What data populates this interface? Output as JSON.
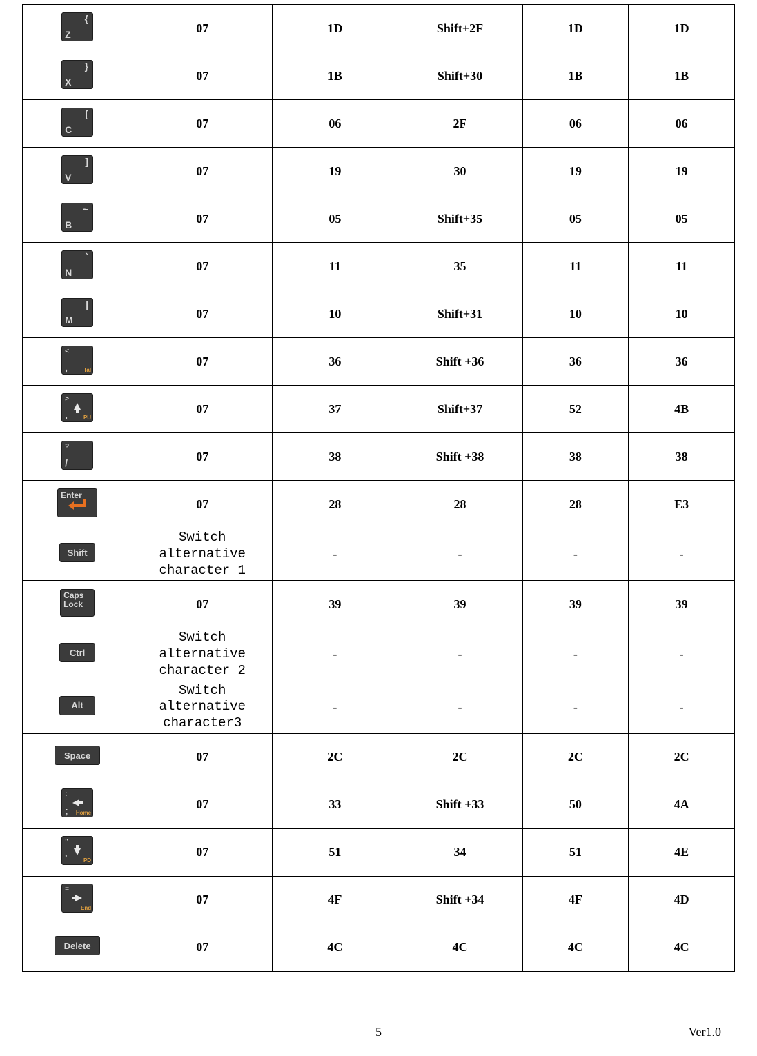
{
  "columns": [
    "key",
    "col1",
    "col2",
    "col3",
    "col4",
    "col5"
  ],
  "footer": {
    "page": "5",
    "ver": "Ver1.0"
  },
  "rows": [
    {
      "key": {
        "type": "char",
        "main": "Z",
        "alt": "{"
      },
      "c1": "07",
      "c2": "1D",
      "c3": "Shift+2F",
      "c4": "1D",
      "c5": "1D"
    },
    {
      "key": {
        "type": "char",
        "main": "X",
        "alt": "}"
      },
      "c1": "07",
      "c2": "1B",
      "c3": "Shift+30",
      "c4": "1B",
      "c5": "1B"
    },
    {
      "key": {
        "type": "char",
        "main": "C",
        "alt": "["
      },
      "c1": "07",
      "c2": "06",
      "c3": "2F",
      "c4": "06",
      "c5": "06"
    },
    {
      "key": {
        "type": "char",
        "main": "V",
        "alt": "]"
      },
      "c1": "07",
      "c2": "19",
      "c3": "30",
      "c4": "19",
      "c5": "19"
    },
    {
      "key": {
        "type": "char",
        "main": "B",
        "alt": "~"
      },
      "c1": "07",
      "c2": "05",
      "c3": "Shift+35",
      "c4": "05",
      "c5": "05"
    },
    {
      "key": {
        "type": "char",
        "main": "N",
        "alt": "`"
      },
      "c1": "07",
      "c2": "11",
      "c3": "35",
      "c4": "11",
      "c5": "11"
    },
    {
      "key": {
        "type": "char",
        "main": "M",
        "alt": "|"
      },
      "c1": "07",
      "c2": "10",
      "c3": "Shift+31",
      "c4": "10",
      "c5": "10"
    },
    {
      "key": {
        "type": "punct",
        "top": "<",
        "bottom": ",",
        "corner": "Tal"
      },
      "c1": "07",
      "c2": "36",
      "c3": "Shift +36",
      "c4": "36",
      "c5": "36"
    },
    {
      "key": {
        "type": "arrowkey",
        "top": ">",
        "bottom": ".",
        "dir": "up",
        "corner": "PU"
      },
      "c1": "07",
      "c2": "37",
      "c3": "Shift+37",
      "c4": "52",
      "c5": "4B"
    },
    {
      "key": {
        "type": "punct",
        "top": "?",
        "bottom": "/",
        "corner": ""
      },
      "c1": "07",
      "c2": "38",
      "c3": "Shift +38",
      "c4": "38",
      "c5": "38"
    },
    {
      "key": {
        "type": "enter"
      },
      "c1": "07",
      "c2": "28",
      "c3": "28",
      "c4": "28",
      "c5": "E3"
    },
    {
      "key": {
        "type": "label",
        "text": "Shift"
      },
      "c1": "Switch alternative character 1",
      "c2": "-",
      "c3": "-",
      "c4": "-",
      "c5": "-",
      "switch": true
    },
    {
      "key": {
        "type": "caps"
      },
      "c1": "07",
      "c2": "39",
      "c3": "39",
      "c4": "39",
      "c5": "39"
    },
    {
      "key": {
        "type": "label",
        "text": "Ctrl"
      },
      "c1": "Switch alternative character 2",
      "c2": "-",
      "c3": "-",
      "c4": "-",
      "c5": "-",
      "switch": true
    },
    {
      "key": {
        "type": "label",
        "text": "Alt"
      },
      "c1": "Switch alternative character3",
      "c2": "-",
      "c3": "-",
      "c4": "-",
      "c5": "-",
      "switch": true
    },
    {
      "key": {
        "type": "label-lg",
        "text": "Space"
      },
      "c1": "07",
      "c2": "2C",
      "c3": "2C",
      "c4": "2C",
      "c5": "2C"
    },
    {
      "key": {
        "type": "arrowkey",
        "top": ":",
        "bottom": ";",
        "dir": "left",
        "corner": "Home"
      },
      "c1": "07",
      "c2": "33",
      "c3": "Shift +33",
      "c4": "50",
      "c5": "4A"
    },
    {
      "key": {
        "type": "arrowkey",
        "top": "\"",
        "bottom": "'",
        "dir": "down",
        "corner": "PD"
      },
      "c1": "07",
      "c2": "51",
      "c3": "34",
      "c4": "51",
      "c5": "4E"
    },
    {
      "key": {
        "type": "arrowkey",
        "top": "=",
        "bottom": "",
        "dir": "right",
        "corner": "End"
      },
      "c1": "07",
      "c2": "4F",
      "c3": "Shift +34",
      "c4": "4F",
      "c5": "4D"
    },
    {
      "key": {
        "type": "label-lg",
        "text": "Delete"
      },
      "c1": "07",
      "c2": "4C",
      "c3": "4C",
      "c4": "4C",
      "c5": "4C"
    }
  ]
}
